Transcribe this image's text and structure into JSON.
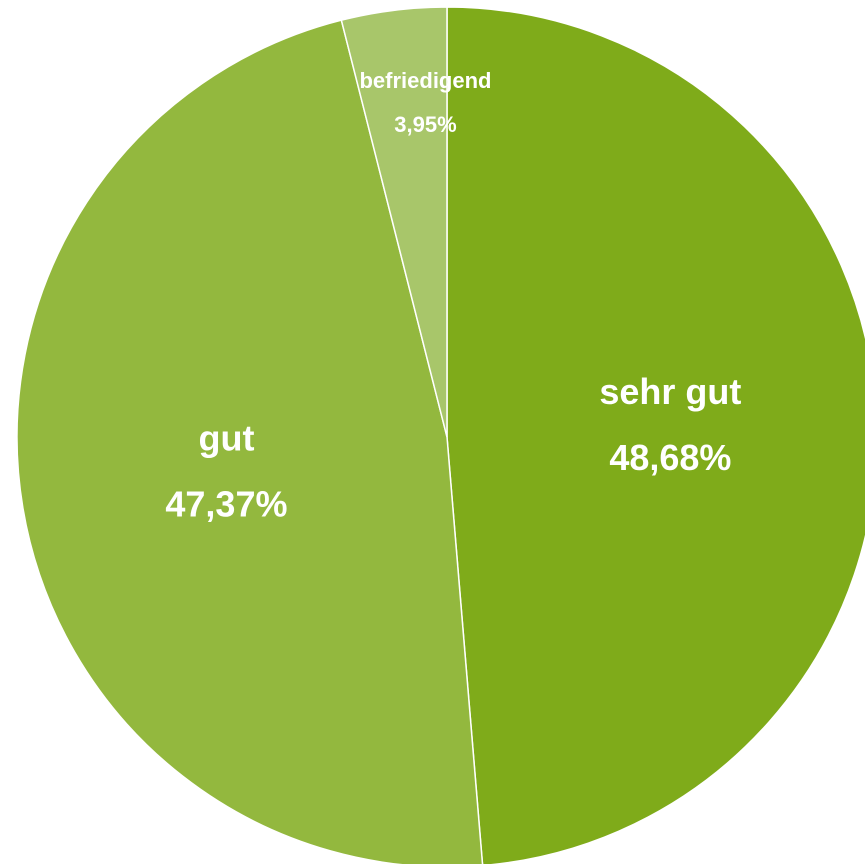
{
  "chart_data": {
    "type": "pie",
    "categories": [
      "sehr gut",
      "gut",
      "befriedigend"
    ],
    "values": [
      48.68,
      47.37,
      3.95
    ],
    "value_labels": [
      "48,68%",
      "47,37%",
      "3,95%"
    ],
    "colors": [
      "#7fab1a",
      "#93b83e",
      "#a8c66a"
    ]
  }
}
